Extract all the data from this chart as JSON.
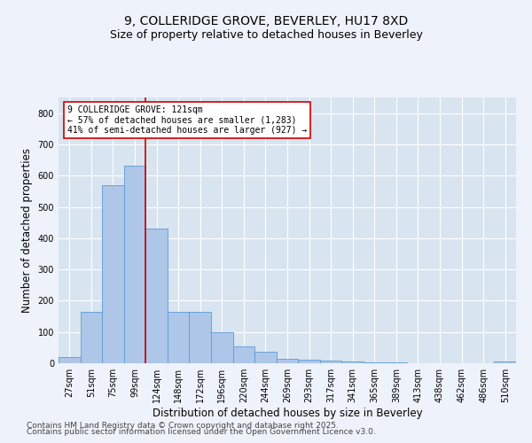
{
  "title1": "9, COLLERIDGE GROVE, BEVERLEY, HU17 8XD",
  "title2": "Size of property relative to detached houses in Beverley",
  "xlabel": "Distribution of detached houses by size in Beverley",
  "ylabel": "Number of detached properties",
  "categories": [
    "27sqm",
    "51sqm",
    "75sqm",
    "99sqm",
    "124sqm",
    "148sqm",
    "172sqm",
    "196sqm",
    "220sqm",
    "244sqm",
    "269sqm",
    "293sqm",
    "317sqm",
    "341sqm",
    "365sqm",
    "389sqm",
    "413sqm",
    "438sqm",
    "462sqm",
    "486sqm",
    "510sqm"
  ],
  "values": [
    20,
    163,
    570,
    632,
    430,
    163,
    163,
    100,
    55,
    37,
    14,
    10,
    8,
    5,
    3,
    2,
    1,
    1,
    0,
    0,
    5
  ],
  "bar_color": "#aec6e8",
  "bar_edge_color": "#5b9bd5",
  "vline_x": 3.5,
  "vline_color": "#cc0000",
  "annotation_text": "9 COLLERIDGE GROVE: 121sqm\n← 57% of detached houses are smaller (1,283)\n41% of semi-detached houses are larger (927) →",
  "annotation_box_color": "#ffffff",
  "annotation_box_edge": "#cc0000",
  "ylim": [
    0,
    850
  ],
  "yticks": [
    0,
    100,
    200,
    300,
    400,
    500,
    600,
    700,
    800
  ],
  "footer1": "Contains HM Land Registry data © Crown copyright and database right 2025.",
  "footer2": "Contains public sector information licensed under the Open Government Licence v3.0.",
  "bg_color": "#eef2fa",
  "plot_bg_color": "#d8e4f0",
  "grid_color": "#ffffff",
  "title_fontsize": 10,
  "subtitle_fontsize": 9,
  "tick_fontsize": 7,
  "label_fontsize": 8.5,
  "footer_fontsize": 6.5
}
